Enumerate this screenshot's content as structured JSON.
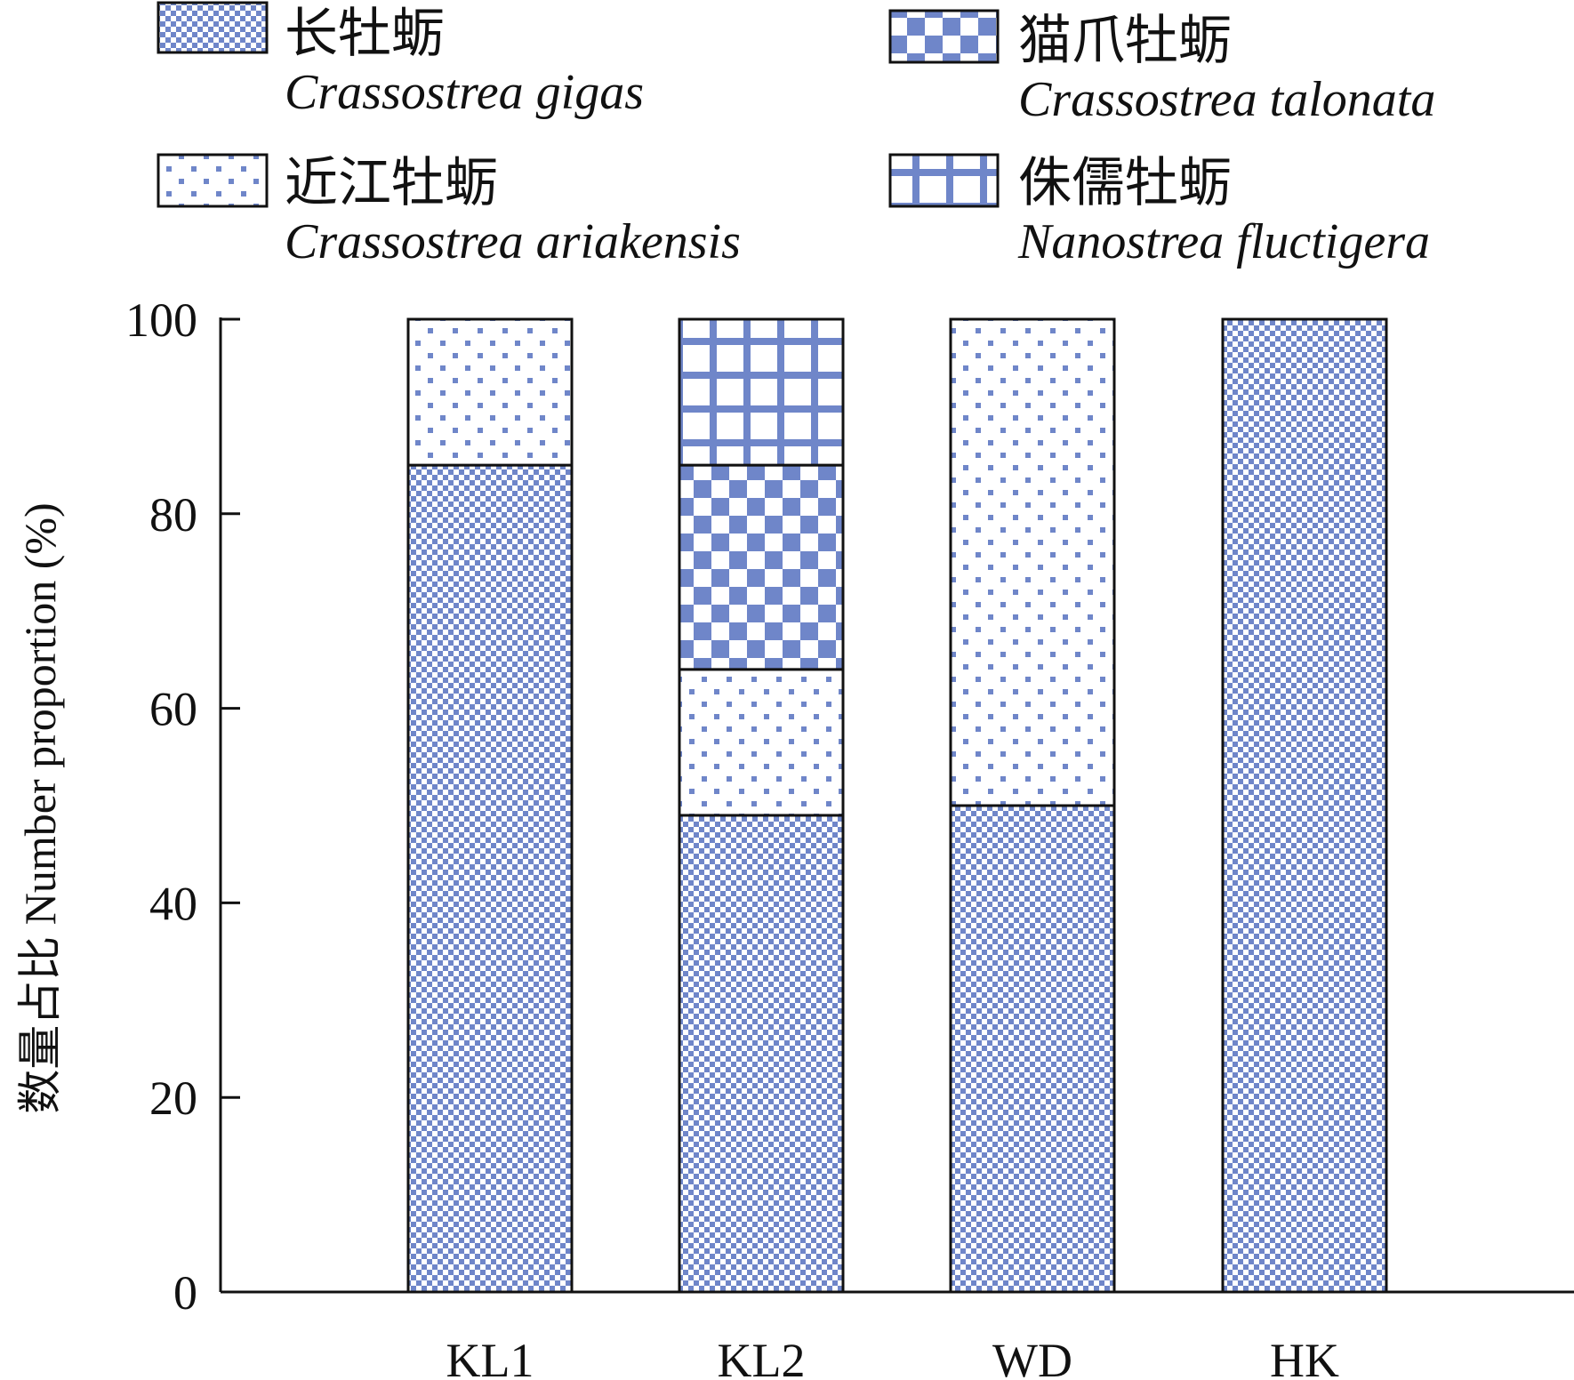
{
  "chart_data": {
    "type": "bar",
    "stacked": true,
    "title": "",
    "xlabel": "",
    "ylabel": "数量占比 Number proportion (%)",
    "ylim": [
      0,
      100
    ],
    "yticks": [
      0,
      20,
      40,
      60,
      80,
      100
    ],
    "categories": [
      "KL1",
      "KL2",
      "WD",
      "HK"
    ],
    "legend_position": "top",
    "series": [
      {
        "name_cn": "长牡蛎",
        "name": "Crassostrea gigas",
        "pattern": "fine-checker",
        "values": [
          85,
          49,
          50,
          100
        ]
      },
      {
        "name_cn": "近江牡蛎",
        "name": "Crassostrea ariakensis",
        "pattern": "dots",
        "values": [
          15,
          15,
          50,
          0
        ]
      },
      {
        "name_cn": "猫爪牡蛎",
        "name": "Crassostrea talonata",
        "pattern": "coarse-checker",
        "values": [
          0,
          21,
          0,
          0
        ]
      },
      {
        "name_cn": "侏儒牡蛎",
        "name": "Nanostrea fluctigera",
        "pattern": "grid",
        "values": [
          0,
          15,
          0,
          0
        ]
      }
    ],
    "colors": {
      "pattern": "#6f86c9",
      "fill": "#ffffff",
      "stroke": "#111111"
    }
  }
}
